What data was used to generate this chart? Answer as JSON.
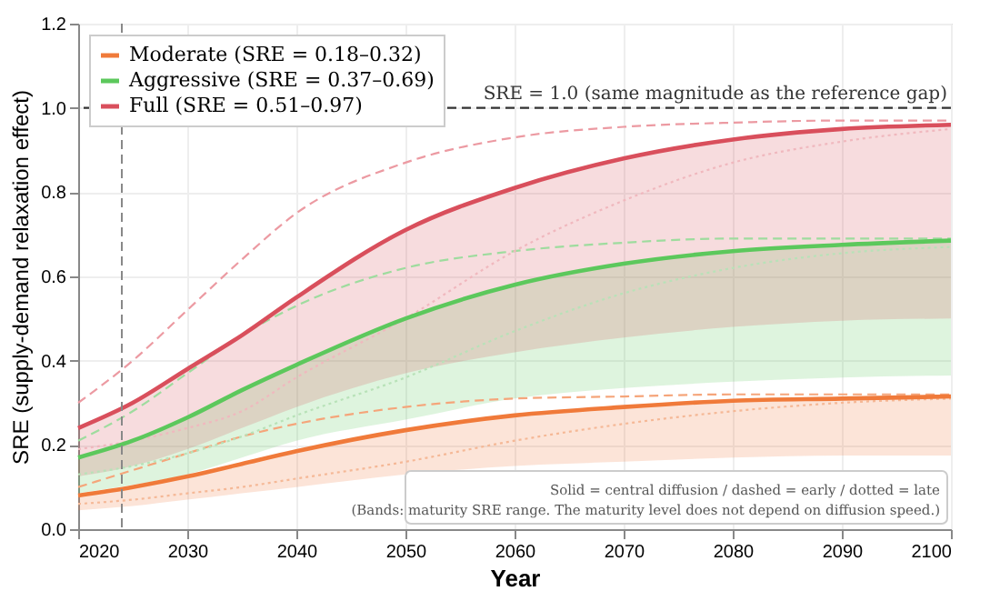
{
  "chart_data": {
    "type": "line",
    "xlabel": "Year",
    "ylabel": "SRE (supply-demand relaxation effect)",
    "x": [
      2020,
      2025,
      2030,
      2035,
      2040,
      2050,
      2060,
      2070,
      2080,
      2090,
      2100
    ],
    "xlim": [
      2020,
      2100
    ],
    "xticks": [
      2020,
      2030,
      2040,
      2050,
      2060,
      2070,
      2080,
      2090,
      2100
    ],
    "ylim": [
      0,
      1.2
    ],
    "yticks": [
      {
        "value": 0,
        "label": "0.0"
      },
      {
        "value": 0.2,
        "label": "0.2"
      },
      {
        "value": 0.4,
        "label": "0.4"
      },
      {
        "value": 0.6,
        "label": "0.6"
      },
      {
        "value": 0.8,
        "label": "0.8"
      },
      {
        "value": 1.0,
        "label": "1.0"
      },
      {
        "value": 1.2,
        "label": "1.2"
      }
    ],
    "grid": true,
    "legend": "top left",
    "series": [
      {
        "name": "Moderate (SRE = 0.18–0.32)",
        "color": "#f07a3a",
        "line_style": "solid",
        "values": [
          0.08,
          0.1,
          0.125,
          0.155,
          0.185,
          0.235,
          0.27,
          0.29,
          0.305,
          0.31,
          0.315
        ],
        "lower": [
          0.045,
          0.055,
          0.07,
          0.085,
          0.1,
          0.13,
          0.15,
          0.16,
          0.17,
          0.175,
          0.175
        ],
        "upper": [
          0.08,
          0.1,
          0.125,
          0.155,
          0.185,
          0.235,
          0.27,
          0.29,
          0.305,
          0.31,
          0.315
        ]
      },
      {
        "name": "Aggressive (SRE = 0.37–0.69)",
        "color": "#5cc85c",
        "line_style": "solid",
        "values": [
          0.17,
          0.21,
          0.265,
          0.33,
          0.39,
          0.5,
          0.58,
          0.63,
          0.66,
          0.675,
          0.685
        ],
        "lower": [
          0.085,
          0.105,
          0.13,
          0.17,
          0.21,
          0.26,
          0.31,
          0.335,
          0.35,
          0.36,
          0.365
        ],
        "upper": [
          0.17,
          0.21,
          0.265,
          0.33,
          0.39,
          0.5,
          0.58,
          0.63,
          0.66,
          0.675,
          0.685
        ]
      },
      {
        "name": "Full (SRE = 0.51–0.97)",
        "color": "#d94f5c",
        "line_style": "solid",
        "values": [
          0.24,
          0.3,
          0.38,
          0.46,
          0.55,
          0.71,
          0.81,
          0.88,
          0.925,
          0.95,
          0.96
        ],
        "lower": [
          0.125,
          0.15,
          0.19,
          0.24,
          0.29,
          0.37,
          0.42,
          0.455,
          0.48,
          0.495,
          0.5
        ],
        "upper": [
          0.24,
          0.3,
          0.38,
          0.46,
          0.55,
          0.71,
          0.81,
          0.88,
          0.925,
          0.95,
          0.96
        ]
      },
      {
        "color": "#f5a57a",
        "line_style": "dashed",
        "values": [
          0.1,
          0.14,
          0.18,
          0.22,
          0.25,
          0.29,
          0.31,
          0.315,
          0.32,
          0.32,
          0.32
        ]
      },
      {
        "color": "#9edc9e",
        "line_style": "dashed",
        "values": [
          0.21,
          0.28,
          0.37,
          0.46,
          0.53,
          0.62,
          0.66,
          0.68,
          0.69,
          0.69,
          0.69
        ]
      },
      {
        "color": "#ec9aa2",
        "line_style": "dashed",
        "values": [
          0.3,
          0.4,
          0.52,
          0.64,
          0.75,
          0.87,
          0.93,
          0.955,
          0.965,
          0.97,
          0.97
        ]
      },
      {
        "color": "#f5b896",
        "line_style": "dotted",
        "values": [
          0.06,
          0.07,
          0.085,
          0.1,
          0.12,
          0.16,
          0.21,
          0.25,
          0.28,
          0.3,
          0.31
        ]
      },
      {
        "color": "#b8e2b8",
        "line_style": "dotted",
        "values": [
          0.13,
          0.15,
          0.18,
          0.22,
          0.27,
          0.36,
          0.47,
          0.56,
          0.62,
          0.655,
          0.67
        ]
      },
      {
        "color": "#f0b8be",
        "line_style": "dotted",
        "values": [
          0.19,
          0.21,
          0.24,
          0.28,
          0.36,
          0.5,
          0.66,
          0.78,
          0.87,
          0.92,
          0.95
        ]
      }
    ],
    "ref_lines": [
      {
        "axis": "y",
        "value": 1.0,
        "label": "SRE = 1.0 (same magnitude as the reference gap)",
        "color": "#333333",
        "line_style": "dashed"
      },
      {
        "axis": "x",
        "value": 2024,
        "color": "#888888",
        "line_style": "dashed"
      }
    ],
    "annotations": [
      "Solid = central diffusion / dashed = early / dotted = late",
      "(Bands: maturity SRE range. The maturity level does not depend on diffusion speed.)"
    ]
  }
}
